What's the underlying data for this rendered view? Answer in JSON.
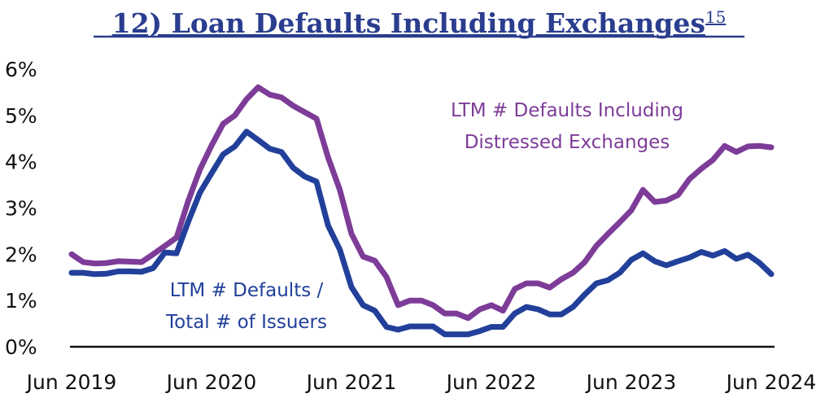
{
  "chart_data": {
    "type": "line",
    "title": "12) Loan Defaults Including Exchanges",
    "title_superscript": "15",
    "xlabel": "",
    "ylabel": "",
    "ylim": [
      0,
      6
    ],
    "y_ticks": [
      "0%",
      "1%",
      "2%",
      "3%",
      "4%",
      "5%",
      "6%"
    ],
    "x_ticks": [
      "Jun 2019",
      "Jun 2020",
      "Jun 2021",
      "Jun 2022",
      "Jun 2023",
      "Jun 2024"
    ],
    "grid": false,
    "x": [
      "2019-06",
      "2019-07",
      "2019-08",
      "2019-09",
      "2019-10",
      "2019-11",
      "2019-12",
      "2020-01",
      "2020-02",
      "2020-03",
      "2020-04",
      "2020-05",
      "2020-06",
      "2020-07",
      "2020-08",
      "2020-09",
      "2020-10",
      "2020-11",
      "2020-12",
      "2021-01",
      "2021-02",
      "2021-03",
      "2021-04",
      "2021-05",
      "2021-06",
      "2021-07",
      "2021-08",
      "2021-09",
      "2021-10",
      "2021-11",
      "2021-12",
      "2022-01",
      "2022-02",
      "2022-03",
      "2022-04",
      "2022-05",
      "2022-06",
      "2022-07",
      "2022-08",
      "2022-09",
      "2022-10",
      "2022-11",
      "2022-12",
      "2023-01",
      "2023-02",
      "2023-03",
      "2023-04",
      "2023-05",
      "2023-06",
      "2023-07",
      "2023-08",
      "2023-09",
      "2023-10",
      "2023-11",
      "2023-12",
      "2024-01",
      "2024-02",
      "2024-03",
      "2024-04",
      "2024-05",
      "2024-06"
    ],
    "series": [
      {
        "name": "LTM # Defaults Including Distressed Exchanges",
        "label_lines": [
          "LTM # Defaults Including",
          "Distressed Exchanges"
        ],
        "color": "#7d3c98",
        "values": [
          2.0,
          1.83,
          1.8,
          1.81,
          1.85,
          1.84,
          1.83,
          2.0,
          2.18,
          2.36,
          3.15,
          3.83,
          4.35,
          4.82,
          5.0,
          5.35,
          5.61,
          5.45,
          5.39,
          5.21,
          5.07,
          4.93,
          4.09,
          3.39,
          2.44,
          1.95,
          1.86,
          1.51,
          0.9,
          1.0,
          1.0,
          0.9,
          0.72,
          0.72,
          0.62,
          0.81,
          0.9,
          0.78,
          1.25,
          1.37,
          1.37,
          1.28,
          1.46,
          1.6,
          1.83,
          2.18,
          2.44,
          2.69,
          2.95,
          3.39,
          3.13,
          3.16,
          3.28,
          3.63,
          3.85,
          4.04,
          4.34,
          4.21,
          4.33,
          4.34,
          4.31
        ]
      },
      {
        "name": "LTM # Defaults / Total # of Issuers",
        "label_lines": [
          "LTM # Defaults /",
          "Total # of Issuers"
        ],
        "color": "#22409a",
        "values": [
          1.6,
          1.6,
          1.57,
          1.58,
          1.63,
          1.63,
          1.62,
          1.7,
          2.04,
          2.02,
          2.7,
          3.33,
          3.75,
          4.16,
          4.33,
          4.65,
          4.47,
          4.28,
          4.21,
          3.87,
          3.68,
          3.57,
          2.62,
          2.1,
          1.29,
          0.9,
          0.78,
          0.43,
          0.37,
          0.44,
          0.44,
          0.44,
          0.27,
          0.27,
          0.27,
          0.34,
          0.43,
          0.43,
          0.72,
          0.86,
          0.81,
          0.7,
          0.7,
          0.86,
          1.13,
          1.37,
          1.44,
          1.6,
          1.88,
          2.02,
          1.85,
          1.76,
          1.85,
          1.93,
          2.05,
          1.97,
          2.07,
          1.9,
          1.99,
          1.81,
          1.57
        ]
      }
    ]
  }
}
